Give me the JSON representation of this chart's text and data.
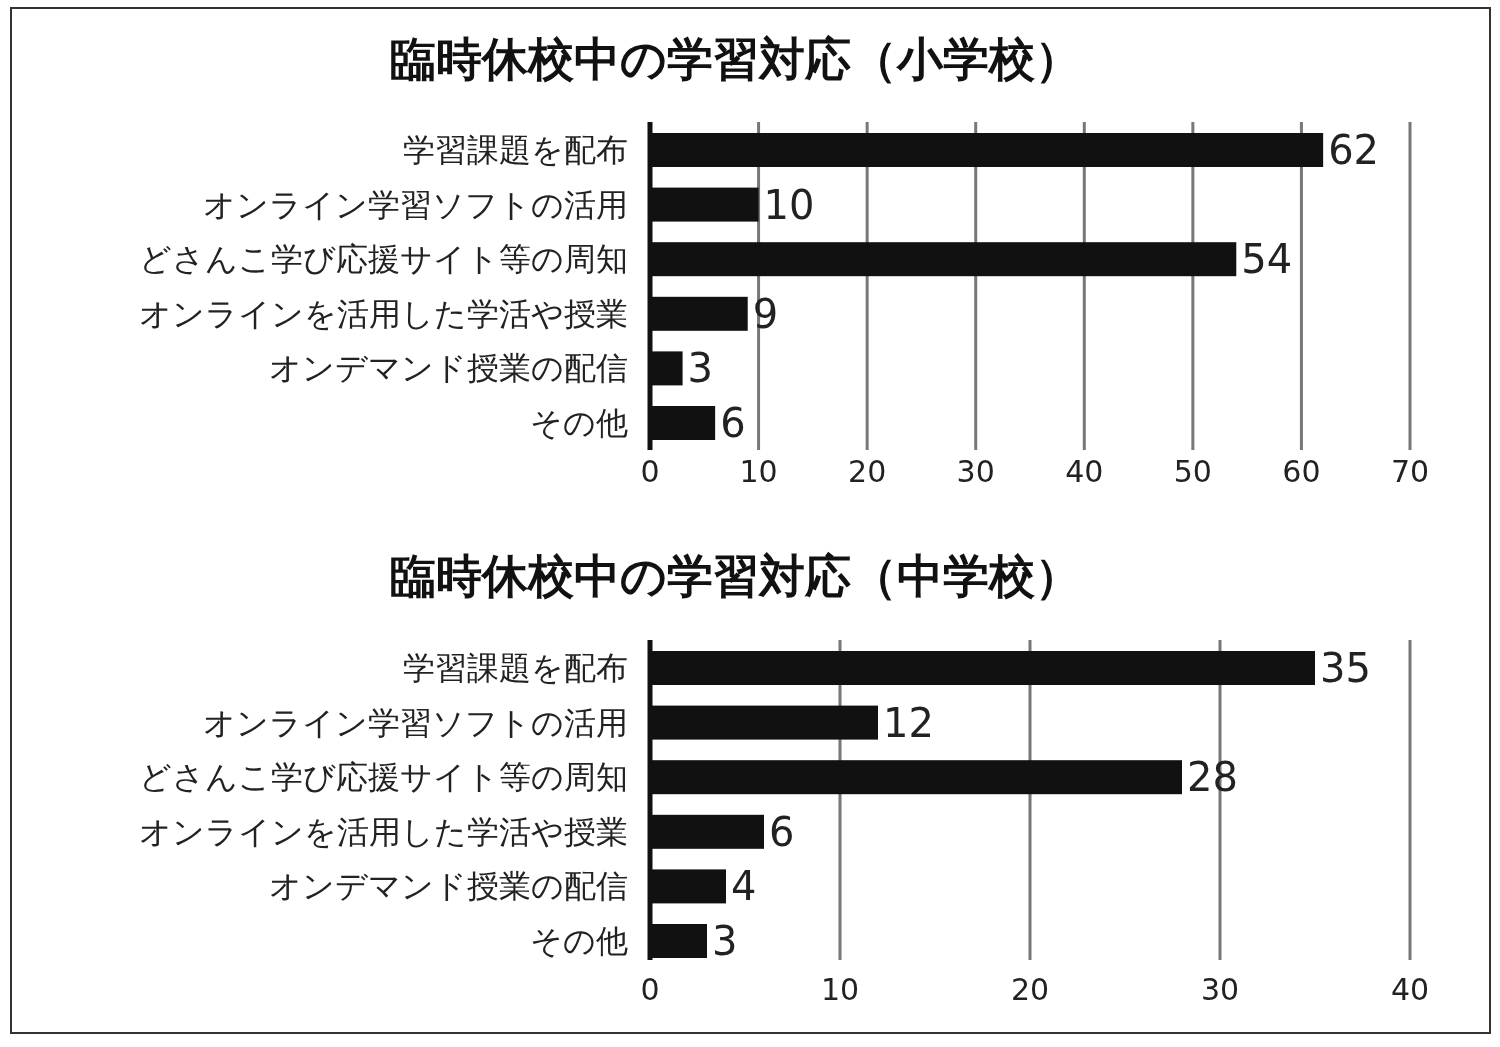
{
  "chart_data": [
    {
      "type": "bar",
      "orientation": "horizontal",
      "title": "臨時休校中の学習対応（小学校）",
      "categories": [
        "学習課題を配布",
        "オンライン学習ソフトの活用",
        "どさんこ学び応援サイト等の周知",
        "オンラインを活用した学活や授業",
        "オンデマンド授業の配信",
        "その他"
      ],
      "values": [
        62,
        10,
        54,
        9,
        3,
        6
      ],
      "color": "#111111",
      "xlim": [
        0,
        70
      ],
      "xticks": [
        0,
        10,
        20,
        30,
        40,
        50,
        60,
        70
      ],
      "grid": "x",
      "data_labels": true
    },
    {
      "type": "bar",
      "orientation": "horizontal",
      "title": "臨時休校中の学習対応（中学校）",
      "categories": [
        "学習課題を配布",
        "オンライン学習ソフトの活用",
        "どさんこ学び応援サイト等の周知",
        "オンラインを活用した学活や授業",
        "オンデマンド授業の配信",
        "その他"
      ],
      "values": [
        35,
        12,
        28,
        6,
        4,
        3
      ],
      "color": "#111111",
      "xlim": [
        0,
        40
      ],
      "xticks": [
        0,
        10,
        20,
        30,
        40
      ],
      "grid": "x",
      "data_labels": true
    }
  ]
}
